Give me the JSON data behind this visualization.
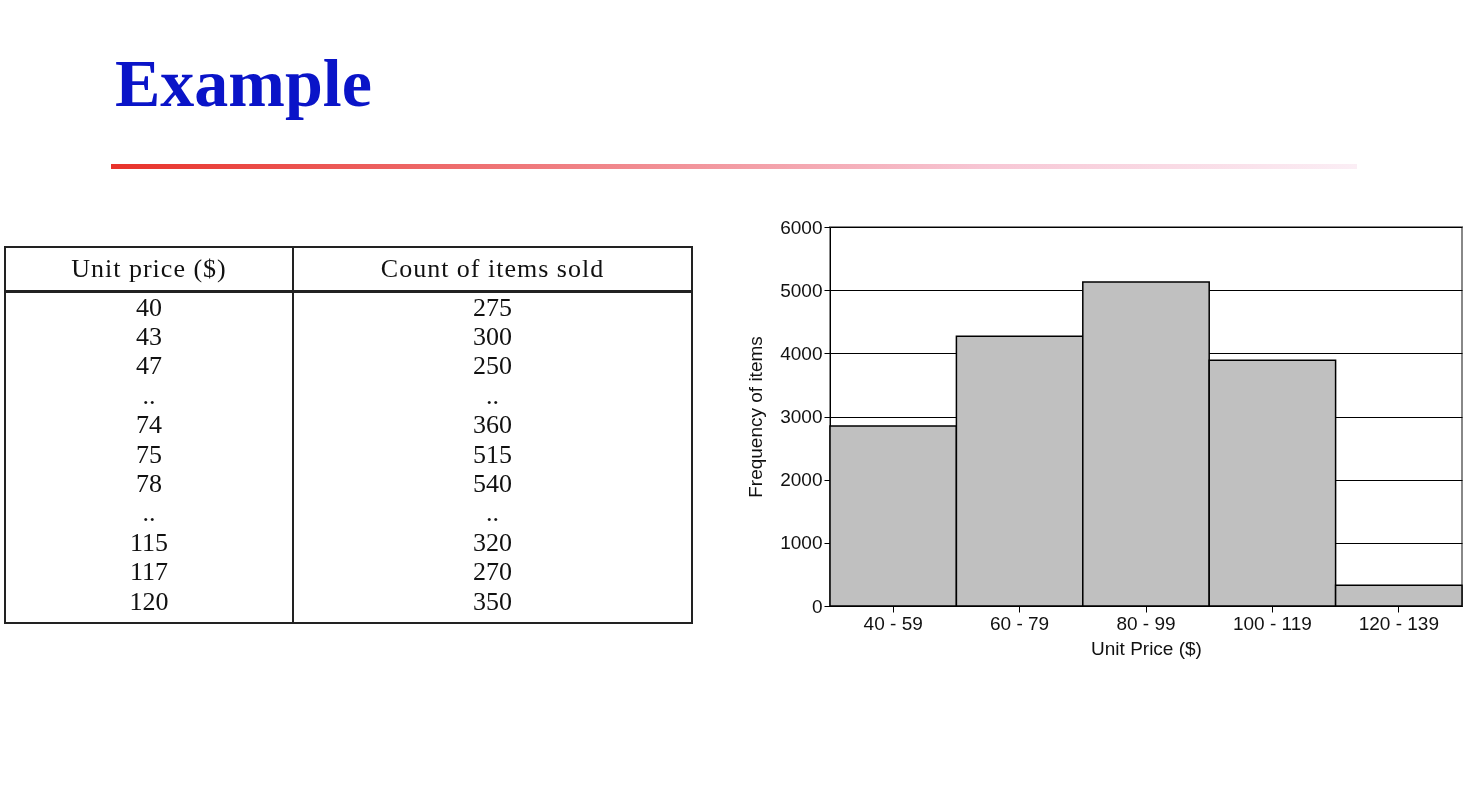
{
  "chart_data": [
    {
      "type": "other",
      "title": "Example",
      "annotations": [
        "Unit price ($)",
        "Count of items sold",
        "40",
        "275",
        "43",
        "300",
        "47",
        "250",
        "..",
        "..",
        "74",
        "360",
        "75",
        "515",
        "78",
        "540",
        "..",
        "..",
        "115",
        "320",
        "117",
        "270",
        "120",
        "350"
      ]
    },
    {
      "type": "bar",
      "categories": [
        "40 - 59",
        "60 - 79",
        "80 - 99",
        "100 - 119",
        "120 - 139"
      ],
      "values": [
        2850,
        4270,
        5130,
        3890,
        330
      ],
      "color": "#c0c0c0",
      "xlabel": "Unit Price ($)",
      "ylabel": "Frequency of items",
      "ylim": [
        0,
        6000
      ],
      "yticks": [
        0,
        1000,
        2000,
        3000,
        4000,
        5000,
        6000
      ],
      "grid": "y"
    }
  ]
}
